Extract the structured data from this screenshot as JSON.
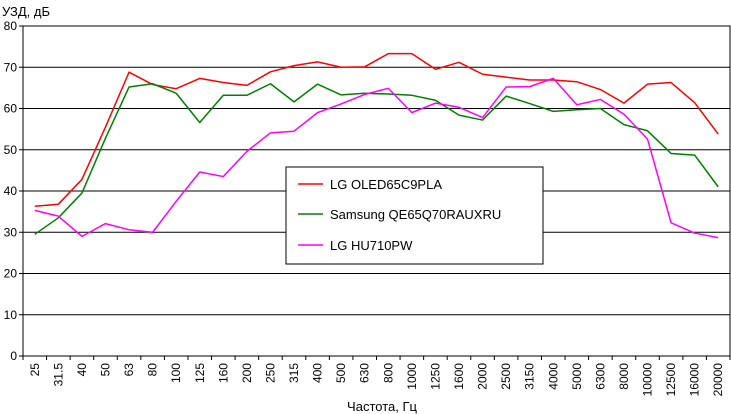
{
  "chart_data": {
    "type": "line",
    "title": "",
    "ylabel": "УЗД, дБ",
    "xlabel": "Частота, Гц",
    "ylim": [
      0,
      80
    ],
    "yticks": [
      0,
      10,
      20,
      30,
      40,
      50,
      60,
      70,
      80
    ],
    "grid": "horizontal",
    "legend_position": "center",
    "categories": [
      "25",
      "31.5",
      "40",
      "50",
      "63",
      "80",
      "100",
      "125",
      "160",
      "200",
      "250",
      "315",
      "400",
      "500",
      "630",
      "800",
      "1000",
      "1250",
      "1600",
      "2000",
      "2500",
      "3150",
      "4000",
      "5000",
      "6300",
      "8000",
      "10000",
      "12500",
      "16000",
      "20000"
    ],
    "series": [
      {
        "name": "LG OLED65C9PLA",
        "color": "#ff0000",
        "values": [
          36.3,
          36.8,
          42.8,
          55.5,
          68.8,
          65.8,
          64.8,
          67.3,
          66.3,
          65.6,
          68.9,
          70.4,
          71.3,
          70.0,
          70.1,
          73.3,
          73.3,
          69.5,
          71.2,
          68.3,
          67.6,
          66.9,
          66.9,
          66.5,
          64.6,
          61.3,
          65.9,
          66.3,
          61.4,
          53.8
        ]
      },
      {
        "name": "Samsung QE65Q70RAUXRU",
        "color": "#008000",
        "values": [
          29.5,
          33.5,
          39.5,
          52.8,
          65.2,
          66.0,
          63.7,
          56.6,
          63.2,
          63.2,
          66.0,
          61.6,
          65.9,
          63.3,
          63.7,
          63.5,
          63.2,
          62.0,
          58.4,
          57.2,
          63.0,
          61.2,
          59.3,
          59.7,
          60.0,
          56.1,
          54.6,
          49.1,
          48.7,
          41.0
        ]
      },
      {
        "name": "LG HU710PW",
        "color": "#ff00ff",
        "values": [
          35.3,
          33.9,
          29.0,
          32.1,
          30.6,
          30.0,
          37.5,
          44.6,
          43.5,
          49.6,
          54.1,
          54.5,
          59.0,
          61.1,
          63.4,
          64.9,
          59.0,
          61.3,
          60.3,
          57.8,
          65.2,
          65.3,
          67.3,
          60.9,
          62.2,
          58.6,
          52.6,
          32.3,
          29.8,
          28.7
        ]
      }
    ]
  }
}
